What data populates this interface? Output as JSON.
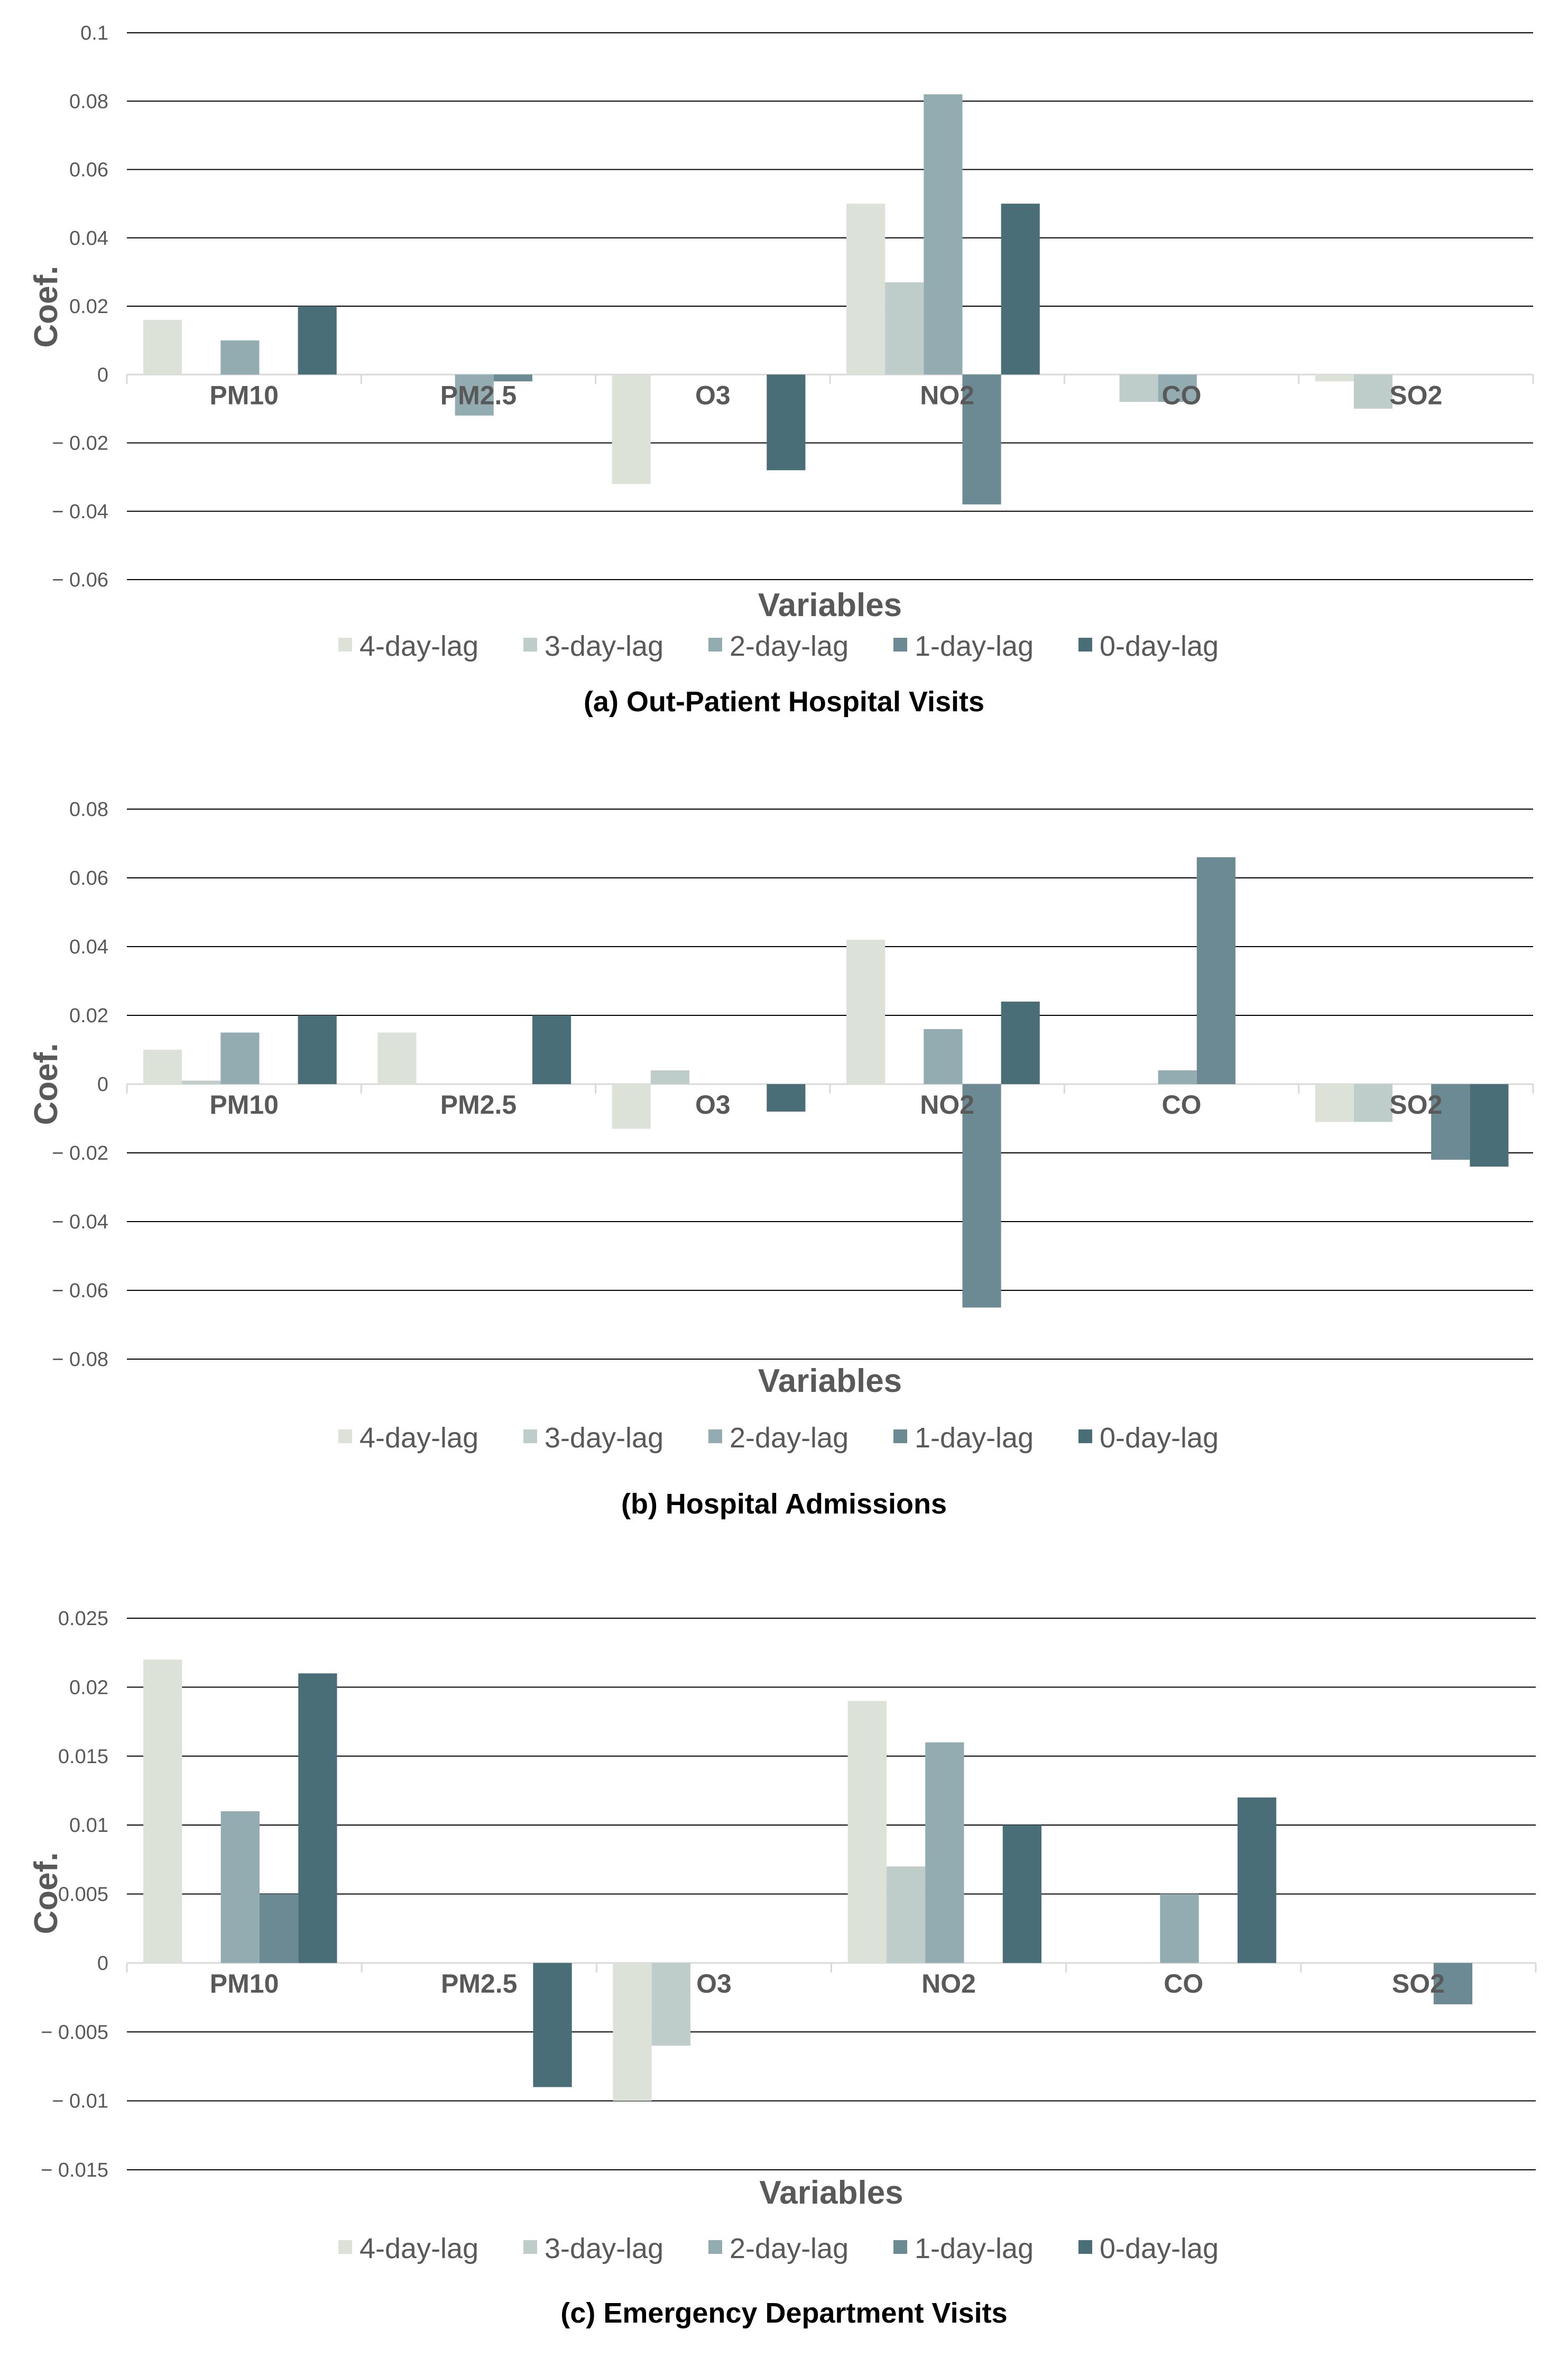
{
  "colors": {
    "lag4": "#dde2d8",
    "lag3": "#bfcdca",
    "lag2": "#93acb2",
    "lag1": "#6b8a94",
    "lag0": "#4a6e78",
    "grid": "#000000",
    "zero_line": "#d9d9d9",
    "text": "#595959"
  },
  "chart_data": [
    {
      "type": "bar",
      "title": "(a) Out-Patient Hospital Visits",
      "xlabel": "Variables",
      "ylabel": "Coef.",
      "ylim": [
        -0.06,
        0.1
      ],
      "yticks": [
        0.1,
        0.08,
        0.06,
        0.04,
        0.02,
        0,
        -0.02,
        -0.04,
        -0.06
      ],
      "ytick_labels": [
        "0.1",
        "0.08",
        "0.06",
        "0.04",
        "0.02",
        "0",
        "− 0.02",
        "− 0.04",
        "− 0.06"
      ],
      "grid": true,
      "legend": "bottom",
      "categories": [
        "PM10",
        "PM2.5",
        "O3",
        "NO2",
        "CO",
        "SO2"
      ],
      "series": [
        {
          "name": "4-day-lag",
          "values": [
            0.016,
            0,
            -0.032,
            0.05,
            0,
            -0.002
          ]
        },
        {
          "name": "3-day-lag",
          "values": [
            0,
            0,
            0,
            0.027,
            -0.008,
            -0.01
          ]
        },
        {
          "name": "2-day-lag",
          "values": [
            0.01,
            -0.012,
            0,
            0.082,
            -0.008,
            0
          ]
        },
        {
          "name": "1-day-lag",
          "values": [
            0,
            -0.002,
            0,
            -0.038,
            0,
            0
          ]
        },
        {
          "name": "0-day-lag",
          "values": [
            0.02,
            0,
            -0.028,
            0.05,
            0,
            0
          ]
        }
      ]
    },
    {
      "type": "bar",
      "title": "(b) Hospital Admissions",
      "xlabel": "Variables",
      "ylabel": "Coef.",
      "ylim": [
        -0.08,
        0.08
      ],
      "yticks": [
        0.08,
        0.06,
        0.04,
        0.02,
        0,
        -0.02,
        -0.04,
        -0.06,
        -0.08
      ],
      "ytick_labels": [
        "0.08",
        "0.06",
        "0.04",
        "0.02",
        "0",
        "− 0.02",
        "− 0.04",
        "− 0.06",
        "− 0.08"
      ],
      "grid": true,
      "legend": "bottom",
      "categories": [
        "PM10",
        "PM2.5",
        "O3",
        "NO2",
        "CO",
        "SO2"
      ],
      "series": [
        {
          "name": "4-day-lag",
          "values": [
            0.01,
            0.015,
            -0.013,
            0.042,
            0,
            -0.011
          ]
        },
        {
          "name": "3-day-lag",
          "values": [
            0.001,
            0,
            0.004,
            0,
            0,
            -0.011
          ]
        },
        {
          "name": "2-day-lag",
          "values": [
            0.015,
            0,
            0,
            0.016,
            0.004,
            0
          ]
        },
        {
          "name": "1-day-lag",
          "values": [
            0,
            0,
            0,
            -0.065,
            0.066,
            -0.022
          ]
        },
        {
          "name": "0-day-lag",
          "values": [
            0.02,
            0.02,
            -0.008,
            0.024,
            0,
            -0.024
          ]
        }
      ]
    },
    {
      "type": "bar",
      "title": "(c) Emergency Department Visits",
      "xlabel": "Variables",
      "ylabel": "Coef.",
      "ylim": [
        -0.015,
        0.025
      ],
      "yticks": [
        0.025,
        0.02,
        0.015,
        0.01,
        0.005,
        0,
        -0.005,
        -0.01,
        -0.015
      ],
      "ytick_labels": [
        "0.025",
        "0.02",
        "0.015",
        "0.01",
        "0.005",
        "0",
        "− 0.005",
        "− 0.01",
        "− 0.015"
      ],
      "grid": true,
      "legend": "bottom",
      "categories": [
        "PM10",
        "PM2.5",
        "O3",
        "NO2",
        "CO",
        "SO2"
      ],
      "series": [
        {
          "name": "4-day-lag",
          "values": [
            0.022,
            0,
            -0.01,
            0.019,
            0,
            0
          ]
        },
        {
          "name": "3-day-lag",
          "values": [
            0,
            0,
            -0.006,
            0.007,
            0,
            0
          ]
        },
        {
          "name": "2-day-lag",
          "values": [
            0.011,
            0,
            0,
            0.016,
            0.005,
            0
          ]
        },
        {
          "name": "1-day-lag",
          "values": [
            0.005,
            0,
            0,
            0,
            0,
            -0.003
          ]
        },
        {
          "name": "0-day-lag",
          "values": [
            0.021,
            -0.009,
            0,
            0.01,
            0.012,
            0
          ]
        }
      ]
    }
  ]
}
